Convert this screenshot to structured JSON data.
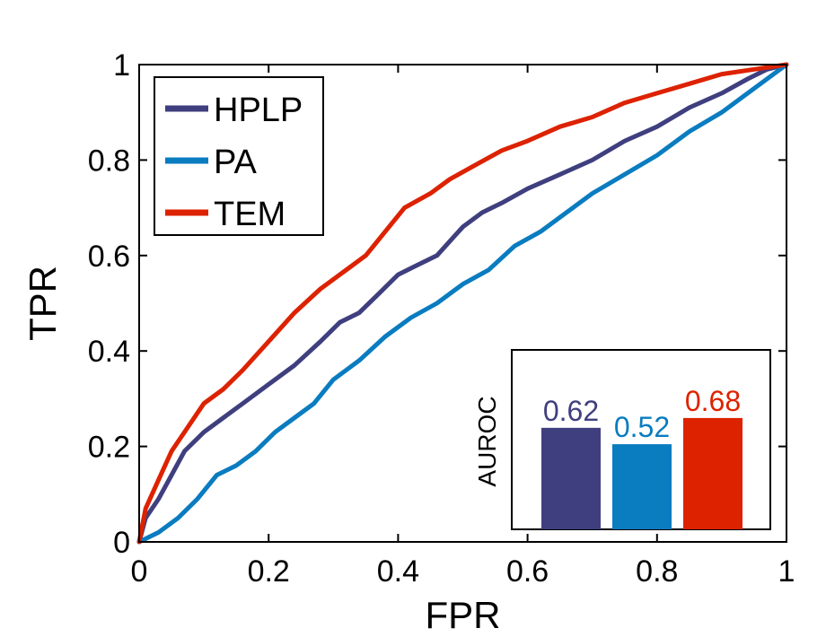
{
  "chart_data": [
    {
      "type": "line",
      "xlabel": "FPR",
      "ylabel": "TPR",
      "xlim": [
        0,
        1
      ],
      "ylim": [
        0,
        1
      ],
      "xticks": [
        "0",
        "0.2",
        "0.4",
        "0.6",
        "0.8",
        "1"
      ],
      "yticks": [
        "0",
        "0.2",
        "0.4",
        "0.6",
        "0.8",
        "1"
      ],
      "legend_position": "top-left",
      "grid": false,
      "series": [
        {
          "name": "HPLP",
          "color": "#3f3f7f",
          "points": [
            [
              0,
              0
            ],
            [
              0.01,
              0.05
            ],
            [
              0.03,
              0.09
            ],
            [
              0.05,
              0.14
            ],
            [
              0.07,
              0.19
            ],
            [
              0.1,
              0.23
            ],
            [
              0.13,
              0.26
            ],
            [
              0.16,
              0.29
            ],
            [
              0.2,
              0.33
            ],
            [
              0.24,
              0.37
            ],
            [
              0.28,
              0.42
            ],
            [
              0.31,
              0.46
            ],
            [
              0.34,
              0.48
            ],
            [
              0.37,
              0.52
            ],
            [
              0.4,
              0.56
            ],
            [
              0.43,
              0.58
            ],
            [
              0.46,
              0.6
            ],
            [
              0.48,
              0.63
            ],
            [
              0.5,
              0.66
            ],
            [
              0.53,
              0.69
            ],
            [
              0.56,
              0.71
            ],
            [
              0.6,
              0.74
            ],
            [
              0.65,
              0.77
            ],
            [
              0.7,
              0.8
            ],
            [
              0.75,
              0.84
            ],
            [
              0.8,
              0.87
            ],
            [
              0.85,
              0.91
            ],
            [
              0.9,
              0.94
            ],
            [
              0.94,
              0.97
            ],
            [
              0.97,
              0.99
            ],
            [
              1,
              1
            ]
          ]
        },
        {
          "name": "PA",
          "color": "#0a7cc0",
          "points": [
            [
              0,
              0
            ],
            [
              0.03,
              0.02
            ],
            [
              0.06,
              0.05
            ],
            [
              0.09,
              0.09
            ],
            [
              0.12,
              0.14
            ],
            [
              0.15,
              0.16
            ],
            [
              0.18,
              0.19
            ],
            [
              0.21,
              0.23
            ],
            [
              0.24,
              0.26
            ],
            [
              0.27,
              0.29
            ],
            [
              0.3,
              0.34
            ],
            [
              0.34,
              0.38
            ],
            [
              0.38,
              0.43
            ],
            [
              0.42,
              0.47
            ],
            [
              0.46,
              0.5
            ],
            [
              0.5,
              0.54
            ],
            [
              0.54,
              0.57
            ],
            [
              0.58,
              0.62
            ],
            [
              0.62,
              0.65
            ],
            [
              0.66,
              0.69
            ],
            [
              0.7,
              0.73
            ],
            [
              0.75,
              0.77
            ],
            [
              0.8,
              0.81
            ],
            [
              0.85,
              0.86
            ],
            [
              0.9,
              0.9
            ],
            [
              0.95,
              0.95
            ],
            [
              1,
              1
            ]
          ]
        },
        {
          "name": "TEM",
          "color": "#dd2200",
          "points": [
            [
              0,
              0
            ],
            [
              0.01,
              0.07
            ],
            [
              0.03,
              0.13
            ],
            [
              0.05,
              0.19
            ],
            [
              0.07,
              0.23
            ],
            [
              0.1,
              0.29
            ],
            [
              0.13,
              0.32
            ],
            [
              0.16,
              0.36
            ],
            [
              0.2,
              0.42
            ],
            [
              0.24,
              0.48
            ],
            [
              0.28,
              0.53
            ],
            [
              0.32,
              0.57
            ],
            [
              0.35,
              0.6
            ],
            [
              0.38,
              0.65
            ],
            [
              0.41,
              0.7
            ],
            [
              0.45,
              0.73
            ],
            [
              0.48,
              0.76
            ],
            [
              0.52,
              0.79
            ],
            [
              0.56,
              0.82
            ],
            [
              0.6,
              0.84
            ],
            [
              0.65,
              0.87
            ],
            [
              0.7,
              0.89
            ],
            [
              0.75,
              0.92
            ],
            [
              0.8,
              0.94
            ],
            [
              0.85,
              0.96
            ],
            [
              0.9,
              0.98
            ],
            [
              0.95,
              0.99
            ],
            [
              1,
              1
            ]
          ]
        }
      ]
    },
    {
      "type": "bar",
      "ylabel": "AUROC",
      "ylim": [
        0,
        1
      ],
      "categories": [
        "HPLP",
        "PA",
        "TEM"
      ],
      "values": [
        0.62,
        0.52,
        0.68
      ],
      "labels": [
        "0.62",
        "0.52",
        "0.68"
      ],
      "colors": [
        "#3f3f7f",
        "#0a7cc0",
        "#dd2200"
      ]
    }
  ]
}
